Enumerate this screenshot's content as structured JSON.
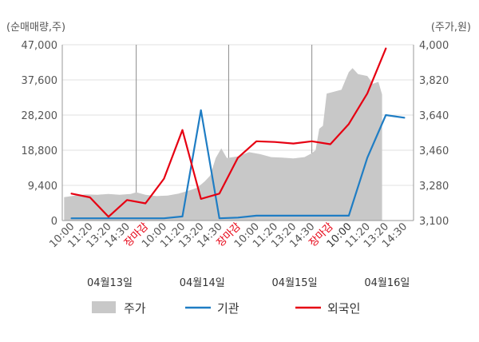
{
  "chart_data": {
    "type": "line",
    "y_left_unit": "(순매매량,주)",
    "y_right_unit": "(주가,원)",
    "y_left_ticks": [
      "47,000",
      "37,600",
      "28,200",
      "18,800",
      "9,400",
      "0"
    ],
    "y_right_ticks": [
      "4,000",
      "3,820",
      "3,640",
      "3,460",
      "3,280",
      "3,100"
    ],
    "ylim_left": [
      0,
      47000
    ],
    "ylim_right": [
      3100,
      4000
    ],
    "x_ticks": [
      {
        "label": "10:00",
        "style": "normal"
      },
      {
        "label": "11:20",
        "style": "normal"
      },
      {
        "label": "13:20",
        "style": "normal"
      },
      {
        "label": "14:30",
        "style": "normal"
      },
      {
        "label": "장마감",
        "style": "close"
      },
      {
        "label": "10:00",
        "style": "normal"
      },
      {
        "label": "11:20",
        "style": "normal"
      },
      {
        "label": "13:20",
        "style": "normal"
      },
      {
        "label": "14:30",
        "style": "normal"
      },
      {
        "label": "장마감",
        "style": "close"
      },
      {
        "label": "10:00",
        "style": "normal"
      },
      {
        "label": "11:20",
        "style": "normal"
      },
      {
        "label": "13:20",
        "style": "normal"
      },
      {
        "label": "14:30",
        "style": "normal"
      },
      {
        "label": "장마감",
        "style": "close"
      },
      {
        "label": "10:00",
        "style": "dark"
      },
      {
        "label": "11:20",
        "style": "normal"
      },
      {
        "label": "13:20",
        "style": "normal"
      },
      {
        "label": "14:30",
        "style": "normal"
      }
    ],
    "dates": [
      "04월13일",
      "04월14일",
      "04월15일",
      "04월16일"
    ],
    "date_positions": [
      2.5,
      7.5,
      12.5,
      17.5
    ],
    "day_separators": [
      3.5,
      8.5,
      13
    ],
    "series": [
      {
        "name": "주가",
        "axis": "right",
        "kind": "area",
        "color": "#c8c8c8",
        "points": [
          [
            -0.4,
            3220
          ],
          [
            0.2,
            3228
          ],
          [
            0.8,
            3234
          ],
          [
            1.4,
            3232
          ],
          [
            2.0,
            3236
          ],
          [
            2.6,
            3232
          ],
          [
            3.2,
            3236
          ],
          [
            3.5,
            3245
          ],
          [
            4.0,
            3232
          ],
          [
            4.6,
            3225
          ],
          [
            5.2,
            3228
          ],
          [
            5.8,
            3238
          ],
          [
            6.4,
            3255
          ],
          [
            6.8,
            3268
          ],
          [
            7.2,
            3300
          ],
          [
            7.5,
            3330
          ],
          [
            7.8,
            3420
          ],
          [
            8.1,
            3470
          ],
          [
            8.4,
            3420
          ],
          [
            9.0,
            3428
          ],
          [
            9.6,
            3450
          ],
          [
            10.2,
            3440
          ],
          [
            10.8,
            3425
          ],
          [
            11.4,
            3422
          ],
          [
            12.0,
            3418
          ],
          [
            12.6,
            3425
          ],
          [
            13.0,
            3445
          ],
          [
            13.2,
            3460
          ],
          [
            13.4,
            3570
          ],
          [
            13.6,
            3585
          ],
          [
            13.8,
            3750
          ],
          [
            14.2,
            3760
          ],
          [
            14.6,
            3770
          ],
          [
            15.0,
            3860
          ],
          [
            15.2,
            3880
          ],
          [
            15.5,
            3850
          ],
          [
            16.0,
            3840
          ],
          [
            16.3,
            3800
          ],
          [
            16.6,
            3810
          ],
          [
            16.8,
            3745
          ],
          [
            16.8,
            3100
          ],
          [
            -0.4,
            3100
          ]
        ]
      },
      {
        "name": "기관",
        "axis": "left",
        "kind": "line",
        "color": "#1f7dc4",
        "points": [
          [
            0,
            600
          ],
          [
            1,
            600
          ],
          [
            2,
            600
          ],
          [
            3,
            600
          ],
          [
            4,
            600
          ],
          [
            5,
            600
          ],
          [
            6,
            1100
          ],
          [
            7,
            29500
          ],
          [
            8,
            600
          ],
          [
            9,
            800
          ],
          [
            10,
            1300
          ],
          [
            11,
            1300
          ],
          [
            12,
            1300
          ],
          [
            13,
            1300
          ],
          [
            14,
            1300
          ],
          [
            15,
            1300
          ],
          [
            16,
            16800
          ],
          [
            17,
            28200
          ],
          [
            18,
            27500
          ]
        ]
      },
      {
        "name": "외국인",
        "axis": "left",
        "kind": "line",
        "color": "#e60012",
        "points": [
          [
            0,
            7200
          ],
          [
            1,
            6200
          ],
          [
            2,
            1000
          ],
          [
            3,
            5500
          ],
          [
            4,
            4600
          ],
          [
            5,
            11200
          ],
          [
            6,
            24200
          ],
          [
            7,
            5800
          ],
          [
            8,
            7200
          ],
          [
            9,
            16800
          ],
          [
            10,
            21200
          ],
          [
            11,
            21000
          ],
          [
            12,
            20600
          ],
          [
            13,
            21200
          ],
          [
            14,
            20400
          ],
          [
            15,
            25800
          ],
          [
            16,
            34000
          ],
          [
            17,
            46000
          ]
        ]
      }
    ]
  },
  "legend": [
    {
      "label": "주가",
      "kind": "area",
      "color": "#c8c8c8"
    },
    {
      "label": "기관",
      "kind": "line",
      "color": "#1f7dc4"
    },
    {
      "label": "외국인",
      "kind": "line",
      "color": "#e60012"
    }
  ]
}
